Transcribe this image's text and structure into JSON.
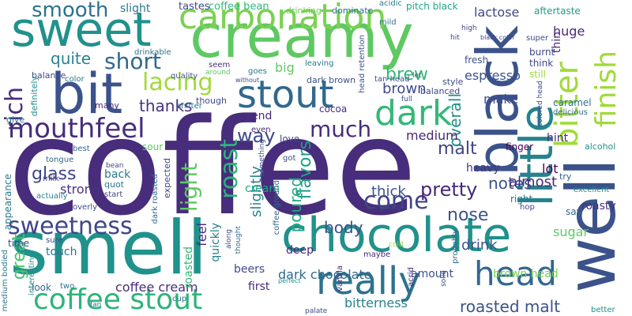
{
  "words": [
    {
      "text": "coffee",
      "color": "#472d7b"
    },
    {
      "text": "creamy",
      "color": "#5ec962"
    },
    {
      "text": "smell",
      "color": "#21918c"
    },
    {
      "text": "bit",
      "color": "#3b528b"
    },
    {
      "text": "sweet",
      "color": "#21918c"
    },
    {
      "text": "black",
      "color": "#3b528b"
    },
    {
      "text": "well",
      "color": "#3b528b"
    },
    {
      "text": "little",
      "color": "#26828e"
    },
    {
      "text": "carbonation",
      "color": "#7ad151"
    },
    {
      "text": "chocolate",
      "color": "#21918c"
    },
    {
      "text": "really",
      "color": "#2c728e"
    },
    {
      "text": "stout",
      "color": "#31688e"
    },
    {
      "text": "dark",
      "color": "#35b779"
    },
    {
      "text": "bitter",
      "color": "#a0da39"
    },
    {
      "text": "finish",
      "color": "#a0da39"
    },
    {
      "text": "mouthfeel",
      "color": "#472d7b"
    },
    {
      "text": "coffee stout",
      "color": "#2fb47c"
    },
    {
      "text": "head",
      "color": "#31688e"
    },
    {
      "text": "sweetness",
      "color": "#404688"
    },
    {
      "text": "smooth",
      "color": "#2c728e"
    },
    {
      "text": "short",
      "color": "#31688e"
    },
    {
      "text": "lacing",
      "color": "#a0da39"
    },
    {
      "text": "rich",
      "color": "#472d7b"
    },
    {
      "text": "much",
      "color": "#472d7b"
    },
    {
      "text": "light",
      "color": "#5ec962"
    },
    {
      "text": "roast",
      "color": "#2fb47c"
    },
    {
      "text": "come",
      "color": "#404688"
    },
    {
      "text": "great",
      "color": "#4ac16d"
    },
    {
      "text": "glass",
      "color": "#414487"
    },
    {
      "text": "malt",
      "color": "#414487"
    },
    {
      "text": "pretty",
      "color": "#482878"
    },
    {
      "text": "roasted malt",
      "color": "#3b528b"
    },
    {
      "text": "quite",
      "color": "#26828e"
    },
    {
      "text": "thanks",
      "color": "#46337e"
    },
    {
      "text": "way",
      "color": "#3e4989"
    },
    {
      "text": "strong",
      "color": "#46337e"
    },
    {
      "text": "flavors",
      "color": "#1f9e89"
    },
    {
      "text": "poured",
      "color": "#22a884"
    },
    {
      "text": "slightly",
      "color": "#26828e"
    },
    {
      "text": "overall",
      "color": "#21918c"
    },
    {
      "text": "brew",
      "color": "#35b779"
    },
    {
      "text": "brown",
      "color": "#3e4989"
    },
    {
      "text": "nose",
      "color": "#3b528b"
    },
    {
      "text": "drink",
      "color": "#3b528b"
    },
    {
      "text": "thick",
      "color": "#3b528b"
    },
    {
      "text": "notes",
      "color": "#3b528b"
    },
    {
      "text": "almost",
      "color": "#482878"
    },
    {
      "text": "body",
      "color": "#3b528b"
    },
    {
      "text": "bitterness",
      "color": "#26828e"
    },
    {
      "text": "coffee cream",
      "color": "#472d7b"
    },
    {
      "text": "dark chocolate",
      "color": "#31688e"
    },
    {
      "text": "brown head",
      "color": "#7ad151"
    },
    {
      "text": "espresso",
      "color": "#3b528b"
    },
    {
      "text": "lactose",
      "color": "#3e4989"
    },
    {
      "text": "medium",
      "color": "#482878"
    },
    {
      "text": "make",
      "color": "#3e4989"
    },
    {
      "text": "lot",
      "color": "#440154"
    },
    {
      "text": "sugar",
      "color": "#5ec962"
    },
    {
      "text": "amount",
      "color": "#3b528b"
    },
    {
      "text": "huge",
      "color": "#482878"
    },
    {
      "text": "big",
      "color": "#5ec962"
    },
    {
      "text": "back",
      "color": "#2a788e"
    },
    {
      "text": "tastes",
      "color": "#3e4989"
    },
    {
      "text": "coffee bean",
      "color": "#35b779"
    },
    {
      "text": "slight",
      "color": "#2a788e"
    },
    {
      "text": "drinking",
      "color": "#6ece58"
    },
    {
      "text": "dominate",
      "color": "#2c728e"
    },
    {
      "text": "pitch black",
      "color": "#20a486"
    },
    {
      "text": "acidic",
      "color": "#2a788e"
    },
    {
      "text": "aftertaste",
      "color": "#1f9e89"
    },
    {
      "text": "thin",
      "color": "#482878"
    },
    {
      "text": "hint",
      "color": "#482878"
    },
    {
      "text": "finger",
      "color": "#440154"
    },
    {
      "text": "heavy",
      "color": "#46337e"
    },
    {
      "text": "roasty",
      "color": "#46337e"
    },
    {
      "text": "right",
      "color": "#2a788e"
    },
    {
      "text": "caramel",
      "color": "#2c728e"
    },
    {
      "text": "delicious",
      "color": "#31688e"
    },
    {
      "text": "think",
      "color": "#3e4989"
    },
    {
      "text": "burnt",
      "color": "#404688"
    },
    {
      "text": "still",
      "color": "#a0da39"
    },
    {
      "text": "fresh",
      "color": "#3b528b"
    },
    {
      "text": "cream",
      "color": "#22a884"
    },
    {
      "text": "even",
      "color": "#482878"
    },
    {
      "text": "love",
      "color": "#3e4989"
    },
    {
      "text": "cocoa",
      "color": "#472d7b"
    },
    {
      "text": "end",
      "color": "#482878"
    },
    {
      "text": "sour",
      "color": "#5ec962"
    },
    {
      "text": "feel",
      "color": "#482878"
    },
    {
      "text": "quickly",
      "color": "#26828e"
    },
    {
      "text": "roasted",
      "color": "#35b779"
    },
    {
      "text": "beers",
      "color": "#3e4989"
    },
    {
      "text": "first",
      "color": "#482878"
    },
    {
      "text": "deep",
      "color": "#482878"
    },
    {
      "text": "time",
      "color": "#3e4989"
    },
    {
      "text": "touch",
      "color": "#2c728e"
    },
    {
      "text": "look",
      "color": "#31688e"
    },
    {
      "text": "appearance",
      "color": "#2a788e"
    },
    {
      "text": "drinkable",
      "color": "#2c728e"
    },
    {
      "text": "quality",
      "color": "#3b528b"
    },
    {
      "text": "balanced",
      "color": "#3e4989"
    },
    {
      "text": "balance",
      "color": "#3e4989"
    },
    {
      "text": "definitely",
      "color": "#21918c"
    },
    {
      "text": "many",
      "color": "#482878"
    },
    {
      "text": "give",
      "color": "#2a788e"
    },
    {
      "text": "color",
      "color": "#2a788e"
    },
    {
      "text": "best",
      "color": "#31688e"
    },
    {
      "text": "tongue",
      "color": "#31688e"
    },
    {
      "text": "milk",
      "color": "#3e4989"
    },
    {
      "text": "quot",
      "color": "#2a788e"
    },
    {
      "text": "start",
      "color": "#3e4989"
    },
    {
      "text": "overly",
      "color": "#3e4989"
    },
    {
      "text": "interesting",
      "color": "#21918c"
    },
    {
      "text": "sure",
      "color": "#3e4989"
    },
    {
      "text": "two",
      "color": "#2c728e"
    },
    {
      "text": "fan",
      "color": "#2c728e"
    },
    {
      "text": "cup",
      "color": "#2c728e"
    },
    {
      "text": "medium bodied",
      "color": "#2a788e"
    },
    {
      "text": "actually",
      "color": "#26828e"
    },
    {
      "text": "expected",
      "color": "#3e4989"
    },
    {
      "text": "dark roasted",
      "color": "#31688e"
    },
    {
      "text": "seem",
      "color": "#472d7b"
    },
    {
      "text": "around",
      "color": "#5ec962"
    },
    {
      "text": "goes",
      "color": "#2a788e"
    },
    {
      "text": "leaving",
      "color": "#2a788e"
    },
    {
      "text": "without",
      "color": "#3e4989"
    },
    {
      "text": "dark brown",
      "color": "#3b528b"
    },
    {
      "text": "tan head",
      "color": "#3b528b"
    },
    {
      "text": "head retention",
      "color": "#3b528b"
    },
    {
      "text": "mild",
      "color": "#2a788e"
    },
    {
      "text": "let",
      "color": "#3e4989"
    },
    {
      "text": "full",
      "color": "#3e4989"
    },
    {
      "text": "style",
      "color": "#3e4989"
    },
    {
      "text": "snifter",
      "color": "#2c728e"
    },
    {
      "text": "though",
      "color": "#3e4989"
    },
    {
      "text": "got",
      "color": "#3e4989"
    },
    {
      "text": "something",
      "color": "#3e4989"
    },
    {
      "text": "thought",
      "color": "#31688e"
    },
    {
      "text": "along",
      "color": "#3e4989"
    },
    {
      "text": "coffee ground",
      "color": "#31688e"
    },
    {
      "text": "maybe",
      "color": "#482878"
    },
    {
      "text": "vanilla",
      "color": "#482878"
    },
    {
      "text": "acrid",
      "color": "#482878"
    },
    {
      "text": "cold",
      "color": "#a0da39"
    },
    {
      "text": "probably",
      "color": "#31688e"
    },
    {
      "text": "going",
      "color": "#3e4989"
    },
    {
      "text": "hop",
      "color": "#3e4989"
    },
    {
      "text": "say",
      "color": "#31688e"
    },
    {
      "text": "try",
      "color": "#31688e"
    },
    {
      "text": "excellent",
      "color": "#21918c"
    },
    {
      "text": "better",
      "color": "#21918c"
    },
    {
      "text": "alcohol",
      "color": "#21918c"
    },
    {
      "text": "super",
      "color": "#3e4989"
    },
    {
      "text": "palate",
      "color": "#3e4989"
    },
    {
      "text": "solid",
      "color": "#3e4989"
    },
    {
      "text": "perfect",
      "color": "#21918c"
    },
    {
      "text": "high",
      "color": "#3e4989"
    },
    {
      "text": "hit",
      "color": "#3e4989"
    },
    {
      "text": "black color",
      "color": "#3e4989"
    },
    {
      "text": "bean",
      "color": "#3e4989"
    },
    {
      "text": "colored head",
      "color": "#3e4989"
    }
  ]
}
